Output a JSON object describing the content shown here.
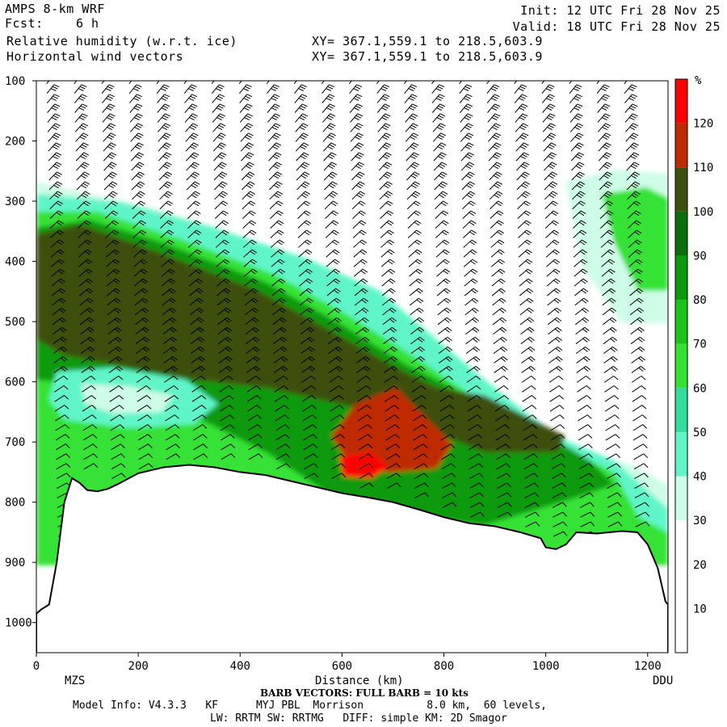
{
  "header": {
    "model": "AMPS 8-km WRF",
    "fcst_label": "Fcst:",
    "fcst_value": "6 h",
    "field1": "Relative humidity (w.r.t. ice)",
    "field2": "Horizontal wind vectors",
    "xy1": "XY= 367.1,559.1 to 218.5,603.9",
    "xy2": "XY= 367.1,559.1 to 218.5,603.9",
    "init": "Init: 12 UTC Fri 28 Nov 25",
    "valid": "Valid: 18 UTC Fri 28 Nov 25"
  },
  "footer": {
    "xlabel": "Distance (km)",
    "left_station": "MZS",
    "right_station": "DDU",
    "barb_note": "BARB VECTORS: FULL BARB = 10 kts",
    "model_info": "Model Info: V4.3.3   KF      MYJ PBL  Morrison          8.0 km,  60 levels,",
    "model_info2": "LW: RRTM SW: RRTMG   DIFF: simple KM: 2D Smagor"
  },
  "chart_data": {
    "type": "heatmap",
    "title": "Relative humidity (w.r.t. ice)",
    "xlabel": "Distance (km)",
    "ylabel": "",
    "xlim": [
      0,
      1240
    ],
    "ylim": [
      1050,
      100
    ],
    "x_ticks": [
      0,
      200,
      400,
      600,
      800,
      1000,
      1200
    ],
    "y_ticks": [
      100,
      200,
      300,
      400,
      500,
      600,
      700,
      800,
      900,
      1000
    ],
    "colorbar": {
      "unit": "%",
      "levels": [
        10,
        20,
        30,
        40,
        50,
        60,
        70,
        80,
        90,
        100,
        110,
        120
      ],
      "colors": [
        "#ffffff",
        "#ffffff",
        "#ffffff",
        "#cdfde6",
        "#60f5c8",
        "#32dc9a",
        "#34e234",
        "#1bc41b",
        "#0c9a0c",
        "#0a6e0a",
        "#3e5010",
        "#c02a00",
        "#ff0000"
      ]
    },
    "terrain_profile": [
      [
        0,
        985
      ],
      [
        10,
        978
      ],
      [
        25,
        970
      ],
      [
        40,
        900
      ],
      [
        55,
        800
      ],
      [
        70,
        760
      ],
      [
        85,
        768
      ],
      [
        100,
        780
      ],
      [
        120,
        782
      ],
      [
        140,
        778
      ],
      [
        160,
        770
      ],
      [
        200,
        752
      ],
      [
        250,
        742
      ],
      [
        300,
        738
      ],
      [
        350,
        742
      ],
      [
        400,
        750
      ],
      [
        450,
        755
      ],
      [
        500,
        765
      ],
      [
        550,
        775
      ],
      [
        600,
        785
      ],
      [
        650,
        792
      ],
      [
        700,
        800
      ],
      [
        750,
        812
      ],
      [
        800,
        825
      ],
      [
        850,
        835
      ],
      [
        900,
        840
      ],
      [
        950,
        850
      ],
      [
        990,
        860
      ],
      [
        1000,
        875
      ],
      [
        1020,
        878
      ],
      [
        1040,
        870
      ],
      [
        1060,
        850
      ],
      [
        1100,
        852
      ],
      [
        1150,
        848
      ],
      [
        1180,
        850
      ],
      [
        1200,
        870
      ],
      [
        1220,
        910
      ],
      [
        1235,
        965
      ],
      [
        1240,
        970
      ]
    ],
    "rh_features": [
      {
        "name": "mid-level moist band",
        "rh_percent": 105
      },
      {
        "name": "saturated core",
        "rh_percent": 120
      },
      {
        "name": "low-level drier pocket",
        "rh_percent": 45
      },
      {
        "name": "upper moist patch near DDU",
        "rh_percent": 75
      }
    ],
    "wind_barbs": {
      "full_barb_kts": 10
    }
  }
}
